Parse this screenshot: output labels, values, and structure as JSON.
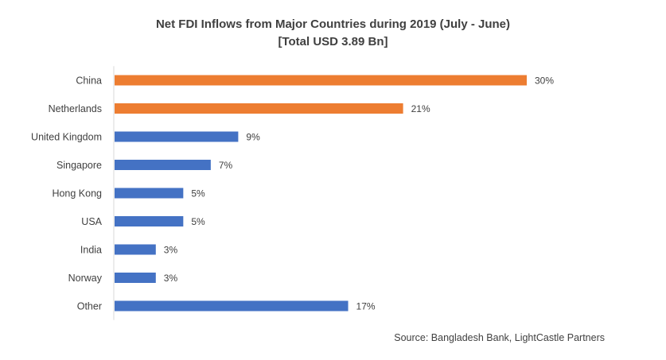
{
  "chart_data": {
    "type": "bar",
    "orientation": "horizontal",
    "title": "Net FDI Inflows from Major Countries during 2019 (July - June)",
    "subtitle": "[Total USD 3.89 Bn]",
    "categories": [
      "China",
      "Netherlands",
      "United Kingdom",
      "Singapore",
      "Hong Kong",
      "USA",
      "India",
      "Norway",
      "Other"
    ],
    "values": [
      30,
      21,
      9,
      7,
      5,
      5,
      3,
      3,
      17
    ],
    "value_labels": [
      "30%",
      "21%",
      "9%",
      "7%",
      "5%",
      "5%",
      "3%",
      "3%",
      "17%"
    ],
    "colors": [
      "#ED7D31",
      "#ED7D31",
      "#4472C4",
      "#4472C4",
      "#4472C4",
      "#4472C4",
      "#4472C4",
      "#4472C4",
      "#4472C4"
    ],
    "xlim": [
      0,
      30
    ],
    "grid": false,
    "legend": "none",
    "source": "Source:  Bangladesh Bank, LightCastle Partners"
  }
}
